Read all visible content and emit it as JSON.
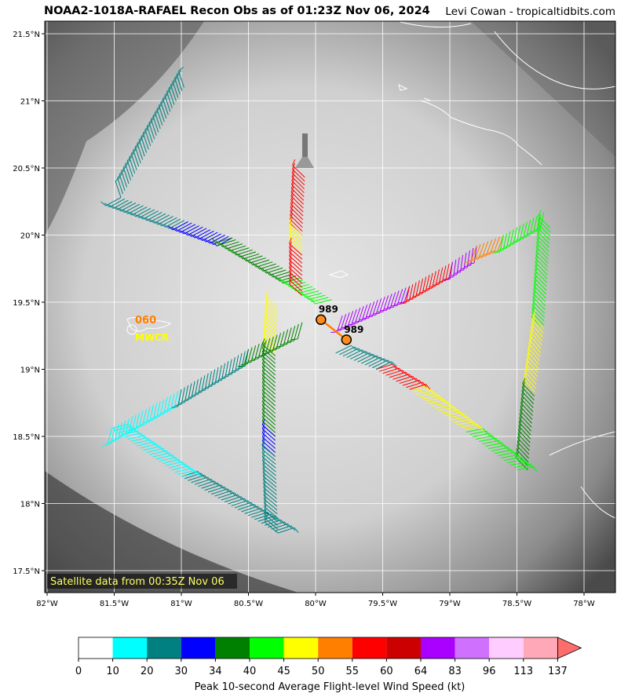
{
  "title": "NOAA2-1018A-RAFAEL Recon Obs as of 01:23Z Nov 06, 2024",
  "credit": "Levi Cowan - tropicaltidbits.com",
  "satellite_label": "Satellite data from 00:35Z Nov 06",
  "map": {
    "lon_range": [
      -82.0,
      -77.75
    ],
    "lat_range": [
      17.35,
      21.6
    ],
    "lon_ticks": [
      "82°W",
      "81.5°W",
      "81°W",
      "80.5°W",
      "80°W",
      "79.5°W",
      "79°W",
      "78.5°W",
      "78°W"
    ],
    "lat_ticks": [
      "21.5°N",
      "21°N",
      "20.5°N",
      "20°N",
      "19.5°N",
      "19°N",
      "18.5°N",
      "18°N",
      "17.5°N"
    ],
    "grid": true
  },
  "station": {
    "value": "060",
    "id": "MWCR",
    "value_color": "#ff7f00",
    "id_color": "#ffff00"
  },
  "pressure_obs": [
    {
      "label": "989",
      "lon": -79.96,
      "lat": 19.37
    },
    {
      "label": "989",
      "lon": -79.77,
      "lat": 19.22
    }
  ],
  "flight_track": [
    {
      "from": [
        -80.98,
        21.1
      ],
      "to": [
        -81.45,
        20.28
      ],
      "kt": 22
    },
    {
      "from": [
        -81.45,
        20.28
      ],
      "to": [
        -80.95,
        20.1
      ],
      "kt": 22
    },
    {
      "from": [
        -80.95,
        20.1
      ],
      "to": [
        -80.62,
        19.98
      ],
      "kt": 32
    },
    {
      "from": [
        -80.62,
        19.98
      ],
      "to": [
        -80.12,
        19.68
      ],
      "kt": 37
    },
    {
      "from": [
        -80.12,
        19.68
      ],
      "to": [
        -79.88,
        19.52
      ],
      "kt": 42
    },
    {
      "from": [
        -80.08,
        20.43
      ],
      "to": [
        -80.1,
        20.0
      ],
      "kt": 58
    },
    {
      "from": [
        -80.1,
        20.0
      ],
      "to": [
        -80.1,
        19.85
      ],
      "kt": 47
    },
    {
      "from": [
        -80.1,
        19.85
      ],
      "to": [
        -80.1,
        19.55
      ],
      "kt": 58
    },
    {
      "from": [
        -79.8,
        19.4
      ],
      "to": [
        -79.3,
        19.62
      ],
      "kt": 70
    },
    {
      "from": [
        -79.3,
        19.62
      ],
      "to": [
        -78.98,
        19.8
      ],
      "kt": 58
    },
    {
      "from": [
        -78.98,
        19.8
      ],
      "to": [
        -78.8,
        19.92
      ],
      "kt": 70
    },
    {
      "from": [
        -78.8,
        19.92
      ],
      "to": [
        -78.6,
        20.0
      ],
      "kt": 52
    },
    {
      "from": [
        -78.6,
        20.0
      ],
      "to": [
        -78.3,
        20.17
      ],
      "kt": 42
    },
    {
      "from": [
        -78.25,
        20.05
      ],
      "to": [
        -78.3,
        19.3
      ],
      "kt": 42
    },
    {
      "from": [
        -78.3,
        19.3
      ],
      "to": [
        -78.37,
        18.8
      ],
      "kt": 47
    },
    {
      "from": [
        -78.37,
        18.8
      ],
      "to": [
        -78.42,
        18.25
      ],
      "kt": 37
    },
    {
      "from": [
        -78.5,
        18.25
      ],
      "to": [
        -78.9,
        18.55
      ],
      "kt": 42
    },
    {
      "from": [
        -78.9,
        18.55
      ],
      "to": [
        -79.3,
        18.85
      ],
      "kt": 47
    },
    {
      "from": [
        -79.3,
        18.85
      ],
      "to": [
        -79.55,
        19.0
      ],
      "kt": 58
    },
    {
      "from": [
        -79.55,
        19.0
      ],
      "to": [
        -79.85,
        19.12
      ],
      "kt": 22
    },
    {
      "from": [
        -80.28,
        19.45
      ],
      "to": [
        -80.3,
        19.1
      ],
      "kt": 47
    },
    {
      "from": [
        -80.3,
        19.1
      ],
      "to": [
        -80.3,
        18.5
      ],
      "kt": 37
    },
    {
      "from": [
        -80.3,
        18.5
      ],
      "to": [
        -80.3,
        18.35
      ],
      "kt": 32
    },
    {
      "from": [
        -80.3,
        18.35
      ],
      "to": [
        -80.28,
        17.78
      ],
      "kt": 22
    },
    {
      "from": [
        -80.28,
        17.78
      ],
      "to": [
        -81.0,
        18.2
      ],
      "kt": 22
    },
    {
      "from": [
        -81.0,
        18.2
      ],
      "to": [
        -81.52,
        18.56
      ],
      "kt": 15
    },
    {
      "from": [
        -81.52,
        18.56
      ],
      "to": [
        -81.0,
        18.85
      ],
      "kt": 15
    },
    {
      "from": [
        -81.0,
        18.85
      ],
      "to": [
        -80.5,
        19.15
      ],
      "kt": 22
    },
    {
      "from": [
        -80.5,
        19.15
      ],
      "to": [
        -80.1,
        19.35
      ],
      "kt": 37
    }
  ],
  "colorbar": {
    "label": "Peak 10-second Average Flight-level Wind Speed (kt)",
    "bounds": [
      "0",
      "10",
      "20",
      "30",
      "34",
      "40",
      "45",
      "50",
      "55",
      "60",
      "64",
      "83",
      "96",
      "113",
      "137"
    ],
    "colors": [
      "#ffffff",
      "#00ffff",
      "#008080",
      "#0000ff",
      "#008000",
      "#00ff00",
      "#ffff00",
      "#ff8000",
      "#ff0000",
      "#cc0000",
      "#aa00ff",
      "#d070ff",
      "#ffccff",
      "#ffa8b8"
    ],
    "extend_color": "#ff6c6c"
  }
}
